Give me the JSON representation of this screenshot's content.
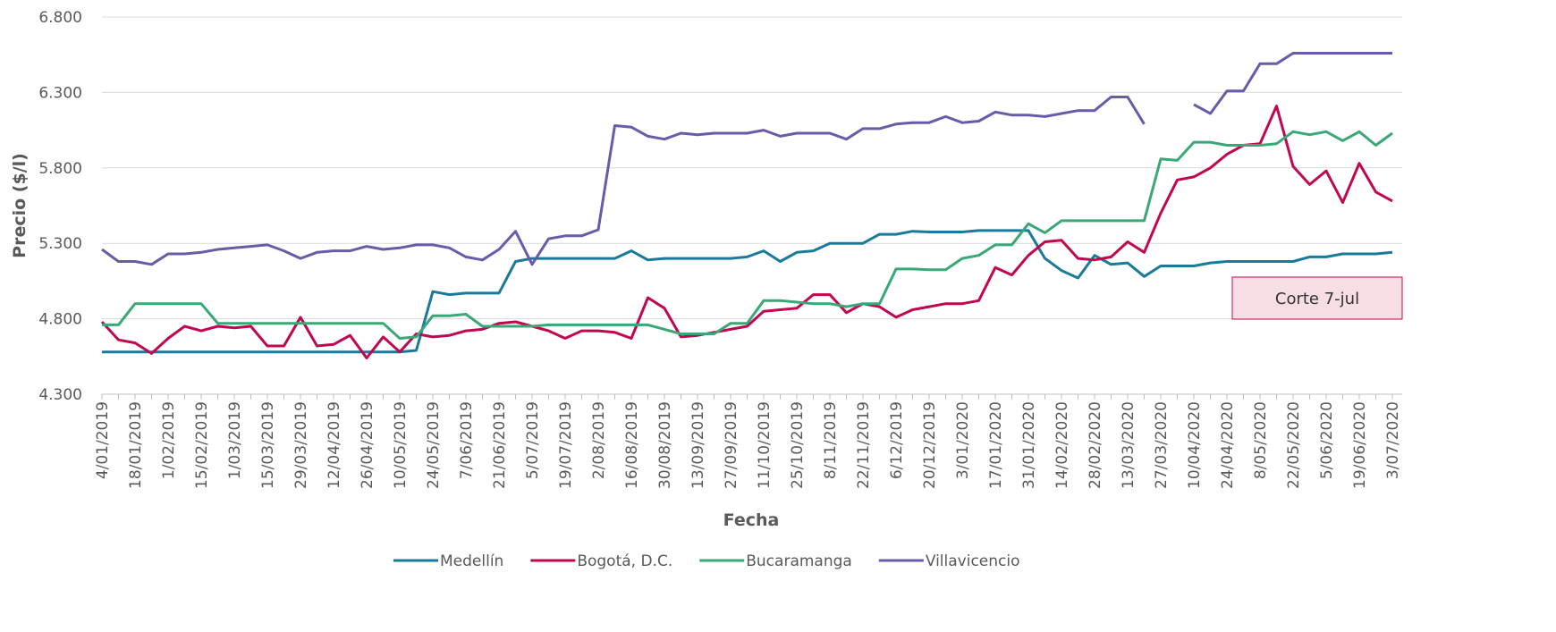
{
  "chart_data": {
    "type": "line",
    "x_label": "Fecha",
    "y_label": "Precio ($/l)",
    "ylim": [
      4300,
      6800
    ],
    "yticks": [
      {
        "value": 4300,
        "label": "4.300"
      },
      {
        "value": 4800,
        "label": "4.800"
      },
      {
        "value": 5300,
        "label": "5.300"
      },
      {
        "value": 5800,
        "label": "5.800"
      },
      {
        "value": 6300,
        "label": "6.300"
      },
      {
        "value": 6800,
        "label": "6.800"
      }
    ],
    "grid": true,
    "legend": "bottom",
    "annotation": "Corte 7-jul",
    "categories": [
      "4/01/2019",
      null,
      "18/01/2019",
      null,
      "1/02/2019",
      null,
      "15/02/2019",
      null,
      "1/03/2019",
      null,
      "15/03/2019",
      null,
      "29/03/2019",
      null,
      "12/04/2019",
      null,
      "26/04/2019",
      null,
      "10/05/2019",
      null,
      "24/05/2019",
      null,
      "7/06/2019",
      null,
      "21/06/2019",
      null,
      "5/07/2019",
      null,
      "19/07/2019",
      null,
      "2/08/2019",
      null,
      "16/08/2019",
      null,
      "30/08/2019",
      null,
      "13/09/2019",
      null,
      "27/09/2019",
      null,
      "11/10/2019",
      null,
      "25/10/2019",
      null,
      "8/11/2019",
      null,
      "22/11/2019",
      null,
      "6/12/2019",
      null,
      "20/12/2019",
      null,
      "3/01/2020",
      null,
      "17/01/2020",
      null,
      "31/01/2020",
      null,
      "14/02/2020",
      null,
      "28/02/2020",
      null,
      "13/03/2020",
      null,
      "27/03/2020",
      null,
      "10/04/2020",
      null,
      "24/04/2020",
      null,
      "8/05/2020",
      null,
      "22/05/2020",
      null,
      "5/06/2020",
      null,
      "19/06/2020",
      null,
      "3/07/2020"
    ],
    "series": [
      {
        "name": "Medellín",
        "color": "#1a7a99",
        "values": [
          4580,
          4580,
          4580,
          4580,
          4580,
          4580,
          4580,
          4580,
          4580,
          4580,
          4580,
          4580,
          4580,
          4580,
          4580,
          4580,
          4580,
          4580,
          4580,
          4590,
          4980,
          4960,
          4970,
          4970,
          4970,
          5180,
          5200,
          5200,
          5200,
          5200,
          5200,
          5200,
          5250,
          5190,
          5200,
          5200,
          5200,
          5200,
          5200,
          5210,
          5250,
          5180,
          5240,
          5250,
          5300,
          5300,
          5300,
          5360,
          5360,
          5380,
          5375,
          5375,
          5375,
          5385,
          5385,
          5385,
          5385,
          5200,
          5120,
          5070,
          5220,
          5160,
          5170,
          5080,
          5150,
          5150,
          5150,
          5170,
          5180,
          5180,
          5180,
          5180,
          5180,
          5210,
          5210,
          5230,
          5230,
          5230,
          5240
        ]
      },
      {
        "name": "Bogotá, D.C.",
        "color": "#c0074f",
        "values": [
          4780,
          4660,
          4640,
          4570,
          4670,
          4750,
          4720,
          4750,
          4740,
          4750,
          4620,
          4620,
          4810,
          4620,
          4630,
          4690,
          4540,
          4680,
          4580,
          4700,
          4680,
          4690,
          4720,
          4730,
          4770,
          4780,
          4750,
          4720,
          4670,
          4720,
          4720,
          4710,
          4670,
          4940,
          4870,
          4680,
          4690,
          4710,
          4730,
          4750,
          4850,
          4860,
          4870,
          4960,
          4960,
          4840,
          4900,
          4880,
          4810,
          4860,
          4880,
          4900,
          4900,
          4920,
          5140,
          5090,
          5220,
          5310,
          5320,
          5200,
          5190,
          5210,
          5310,
          5240,
          5500,
          5720,
          5740,
          5800,
          5890,
          5950,
          5960,
          6210,
          5810,
          5690,
          5780,
          5570,
          5830,
          5640,
          5580
        ]
      },
      {
        "name": "Bucaramanga",
        "color": "#3aa876",
        "values": [
          4760,
          4760,
          4900,
          4900,
          4900,
          4900,
          4900,
          4770,
          4770,
          4770,
          4770,
          4770,
          4770,
          4770,
          4770,
          4770,
          4770,
          4770,
          4670,
          4680,
          4820,
          4820,
          4830,
          4750,
          4750,
          4750,
          4750,
          4760,
          4760,
          4760,
          4760,
          4760,
          4760,
          4760,
          4730,
          4700,
          4700,
          4700,
          4770,
          4770,
          4920,
          4920,
          4910,
          4900,
          4900,
          4880,
          4900,
          4900,
          5130,
          5130,
          5125,
          5125,
          5200,
          5220,
          5290,
          5290,
          5430,
          5370,
          5450,
          5450,
          5450,
          5450,
          5450,
          5450,
          5860,
          5850,
          5970,
          5970,
          5950,
          5950,
          5950,
          5960,
          6040,
          6020,
          6040,
          5980,
          6040,
          5950,
          6030
        ]
      },
      {
        "name": "Villavicencio",
        "color": "#6a5aaa",
        "values": [
          5260,
          5180,
          5180,
          5160,
          5230,
          5230,
          5240,
          5260,
          5270,
          5280,
          5290,
          5250,
          5200,
          5240,
          5250,
          5250,
          5280,
          5260,
          5270,
          5290,
          5290,
          5270,
          5210,
          5190,
          5260,
          5380,
          5160,
          5330,
          5350,
          5350,
          5390,
          6080,
          6070,
          6010,
          5990,
          6030,
          6020,
          6030,
          6030,
          6030,
          6050,
          6010,
          6030,
          6030,
          6030,
          5990,
          6060,
          6060,
          6090,
          6100,
          6100,
          6140,
          6100,
          6110,
          6170,
          6150,
          6150,
          6140,
          6160,
          6180,
          6180,
          6270,
          6270,
          6090,
          null,
          null,
          6220,
          6160,
          6310,
          6310,
          6490,
          6490,
          6560,
          6560,
          6560,
          6560,
          6560,
          6560,
          6560
        ]
      }
    ]
  }
}
